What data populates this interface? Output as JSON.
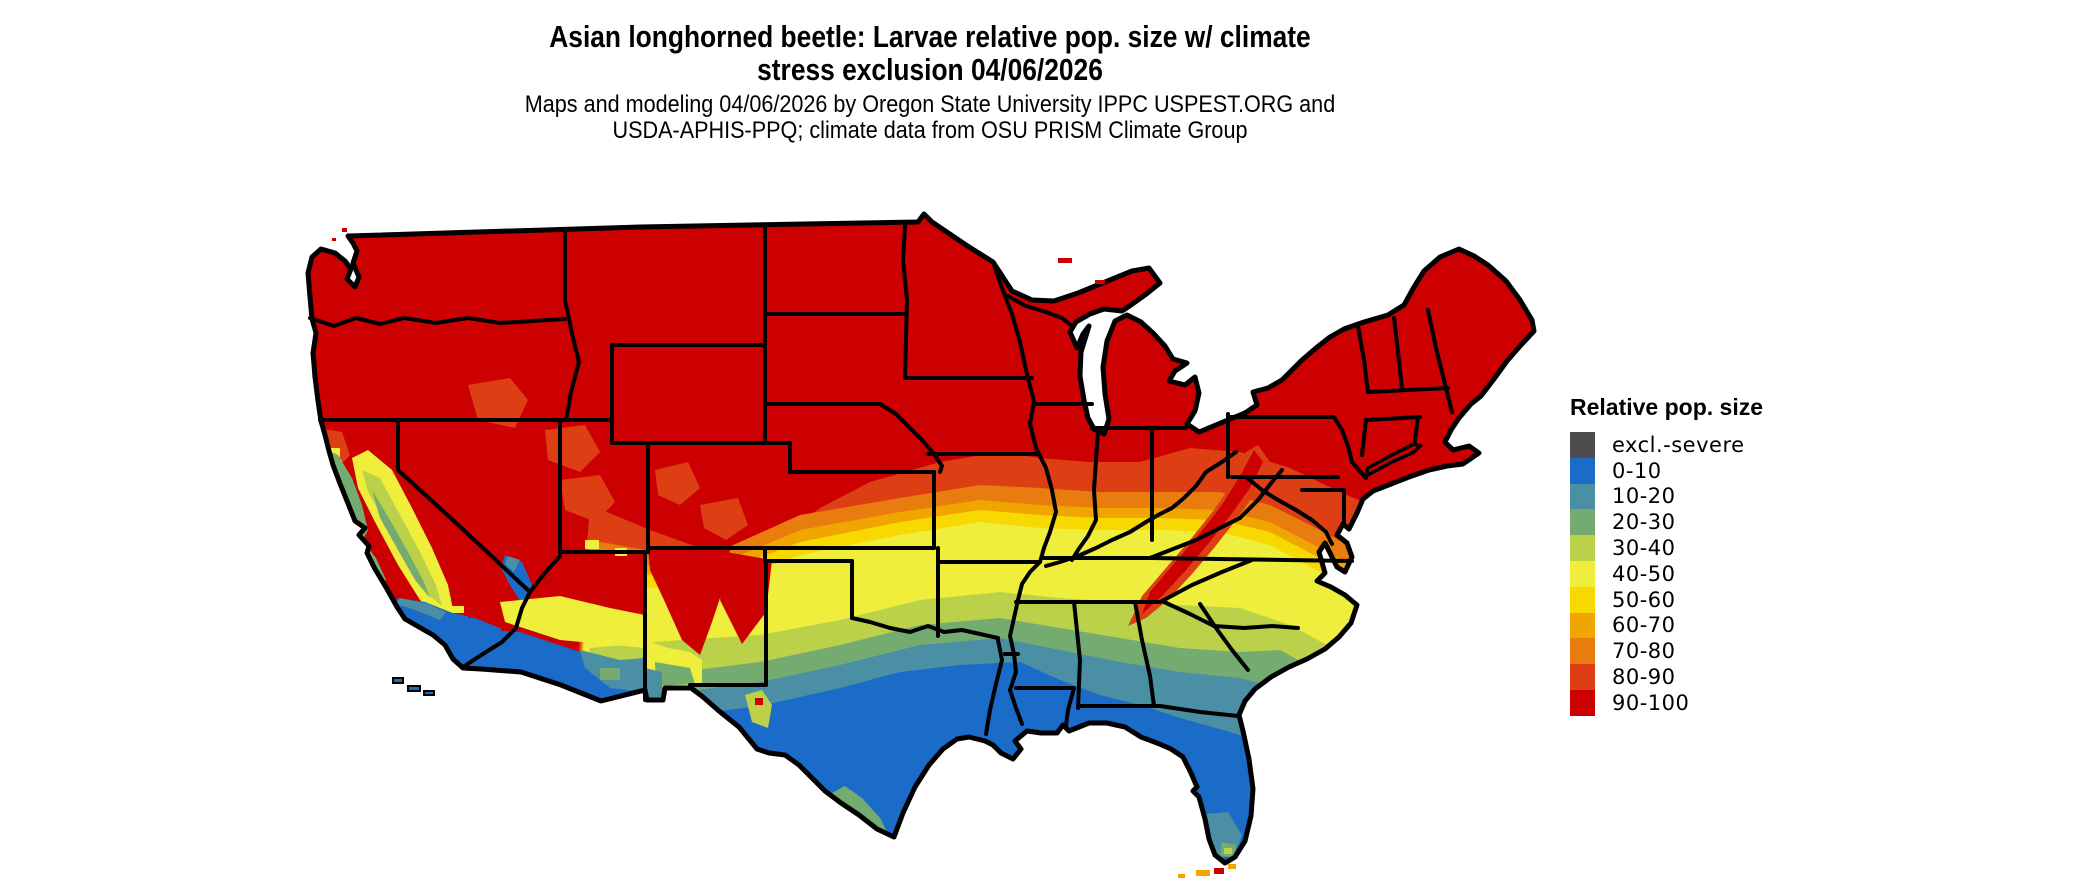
{
  "title": {
    "line1": "Asian longhorned beetle: Larvae relative pop. size w/ climate",
    "line2": "stress exclusion 04/06/2026"
  },
  "subtitle": {
    "line1": "Maps and modeling 04/06/2026 by Oregon State University IPPC USPEST.ORG and",
    "line2": "USDA-APHIS-PPQ; climate data from OSU PRISM Climate Group"
  },
  "legend": {
    "title": "Relative pop. size",
    "items": [
      {
        "label": "excl.-severe",
        "color": "#4d4d4d"
      },
      {
        "label": "0-10",
        "color": "#1b6cc8"
      },
      {
        "label": "10-20",
        "color": "#4a8fa3"
      },
      {
        "label": "20-30",
        "color": "#74ab71"
      },
      {
        "label": "30-40",
        "color": "#bcd14a"
      },
      {
        "label": "40-50",
        "color": "#efee3d"
      },
      {
        "label": "50-60",
        "color": "#f7d800"
      },
      {
        "label": "60-70",
        "color": "#f0a500"
      },
      {
        "label": "70-80",
        "color": "#e87c0e"
      },
      {
        "label": "80-90",
        "color": "#dd3e14"
      },
      {
        "label": "90-100",
        "color": "#cc0000"
      }
    ]
  },
  "map_data": {
    "type": "choropleth-map",
    "region": "contiguous United States",
    "variable": "Asian longhorned beetle larvae relative population size (%), with climate stress exclusion",
    "date": "04/06/2026",
    "dominant_category_north": "90-100",
    "south_to_north_band_order": [
      "0-10",
      "10-20",
      "20-30",
      "30-40",
      "40-50",
      "50-60",
      "60-70",
      "70-80",
      "80-90",
      "90-100"
    ],
    "notes_visible_pattern": "Northern half of US solid 90-100 red; bands grade southward through orange, yellow, green, teal to blue (0-10) along Gulf Coast, Florida, southern Texas, southern Arizona and coastal/southern California; red persists down Appalachians and Rocky Mountain/New Mexico highlands; Great Lakes and ocean shown white"
  }
}
